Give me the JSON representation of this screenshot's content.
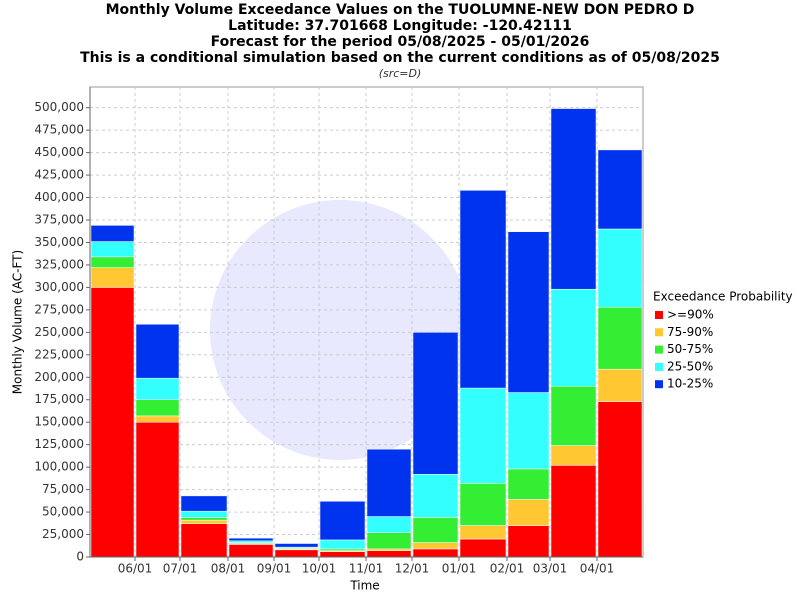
{
  "chart_data": {
    "type": "stacked_bar",
    "title": "Monthly Volume Exceedance Values on the TUOLUMNE-NEW DON PEDRO D",
    "subtitle_lines": [
      "Latitude: 37.701668 Longitude: -120.42111",
      "Forecast for the period 05/08/2025 - 05/01/2026",
      "This is a conditional simulation based on the current conditions as of 05/08/2025"
    ],
    "source_note": "(src=D)",
    "x_label": "Time",
    "y_label": "Monthly Volume (AC-FT)",
    "legend_title": "Exceedance Probability",
    "legend_position": "right",
    "grid": true,
    "categories": [
      null,
      null,
      null,
      null,
      null,
      null,
      null,
      null,
      null,
      null,
      null,
      null
    ],
    "xticks": [
      "06/01",
      "07/01",
      "08/01",
      "09/01",
      "10/01",
      "11/01",
      "12/01",
      "01/01",
      "02/01",
      "03/01",
      "04/01"
    ],
    "ylim": [
      0,
      523000
    ],
    "yticks": [
      {
        "value": 0,
        "label": "0"
      },
      {
        "value": 25000,
        "label": "25,000"
      },
      {
        "value": 50000,
        "label": "50,000"
      },
      {
        "value": 75000,
        "label": "75,000"
      },
      {
        "value": 100000,
        "label": "100,000"
      },
      {
        "value": 125000,
        "label": "125,000"
      },
      {
        "value": 150000,
        "label": "150,000"
      },
      {
        "value": 175000,
        "label": "175,000"
      },
      {
        "value": 200000,
        "label": "200,000"
      },
      {
        "value": 225000,
        "label": "225,000"
      },
      {
        "value": 250000,
        "label": "250,000"
      },
      {
        "value": 275000,
        "label": "275,000"
      },
      {
        "value": 300000,
        "label": "300,000"
      },
      {
        "value": 325000,
        "label": "325,000"
      },
      {
        "value": 350000,
        "label": "350,000"
      },
      {
        "value": 375000,
        "label": "375,000"
      },
      {
        "value": 400000,
        "label": "400,000"
      },
      {
        "value": 425000,
        "label": "425,000"
      },
      {
        "value": 450000,
        "label": "450,000"
      },
      {
        "value": 475000,
        "label": "475,000"
      },
      {
        "value": 500000,
        "label": "500,000"
      }
    ],
    "series": [
      {
        "name": ">=90%",
        "color": "#ff0000",
        "values": [
          300000,
          150000,
          37000,
          14000,
          8000,
          6000,
          7000,
          9000,
          20000,
          35000,
          102000,
          173000
        ]
      },
      {
        "name": "75-90%",
        "color": "#ffc833",
        "values": [
          22000,
          7000,
          4000,
          1000,
          1000,
          1000,
          2000,
          7000,
          15000,
          29000,
          22000,
          36000
        ]
      },
      {
        "name": "50-75%",
        "color": "#33ee33",
        "values": [
          12000,
          18000,
          3000,
          1000,
          1000,
          2000,
          18000,
          28000,
          47000,
          34000,
          66000,
          69000
        ]
      },
      {
        "name": "25-50%",
        "color": "#33ffff",
        "values": [
          17000,
          24000,
          7000,
          2000,
          1000,
          10000,
          18000,
          48000,
          106000,
          85000,
          108000,
          87000
        ]
      },
      {
        "name": "10-25%",
        "color": "#0033ee",
        "values": [
          18000,
          60000,
          17000,
          3000,
          4000,
          43000,
          75000,
          158000,
          220000,
          179000,
          201000,
          88000
        ]
      }
    ]
  }
}
